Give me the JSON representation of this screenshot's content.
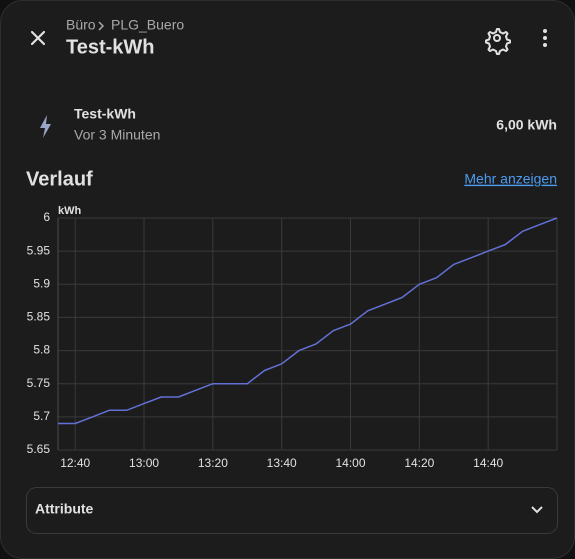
{
  "header": {
    "breadcrumb": [
      "Büro",
      "PLG_Buero"
    ],
    "title": "Test-kWh"
  },
  "entity": {
    "name": "Test-kWh",
    "last_changed": "Vor 3 Minuten",
    "state": "6,00 kWh"
  },
  "history": {
    "heading": "Verlauf",
    "link": "Mehr anzeigen"
  },
  "chart_data": {
    "type": "line",
    "y_label": "kWh",
    "x": [
      "12:35",
      "12:40",
      "12:45",
      "12:50",
      "12:55",
      "13:00",
      "13:05",
      "13:10",
      "13:15",
      "13:20",
      "13:25",
      "13:30",
      "13:35",
      "13:40",
      "13:45",
      "13:50",
      "13:55",
      "14:00",
      "14:05",
      "14:10",
      "14:15",
      "14:20",
      "14:25",
      "14:30",
      "14:35",
      "14:40",
      "14:45",
      "14:50",
      "14:55",
      "15:00"
    ],
    "series": [
      {
        "name": "Test-kWh",
        "color": "#6171d6",
        "values": [
          5.69,
          5.69,
          5.7,
          5.71,
          5.71,
          5.72,
          5.73,
          5.73,
          5.74,
          5.75,
          5.75,
          5.75,
          5.77,
          5.78,
          5.8,
          5.81,
          5.83,
          5.84,
          5.86,
          5.87,
          5.88,
          5.9,
          5.91,
          5.93,
          5.94,
          5.95,
          5.96,
          5.98,
          5.99,
          6.0
        ]
      }
    ],
    "xlim": [
      "12:35",
      "15:00"
    ],
    "xticks": [
      "12:40",
      "13:00",
      "13:20",
      "13:40",
      "14:00",
      "14:20",
      "14:40"
    ],
    "ylim": [
      5.65,
      6
    ],
    "yticks": [
      5.65,
      5.7,
      5.75,
      5.8,
      5.85,
      5.9,
      5.95,
      6
    ],
    "grid": true
  },
  "attributes": {
    "label": "Attribute"
  }
}
